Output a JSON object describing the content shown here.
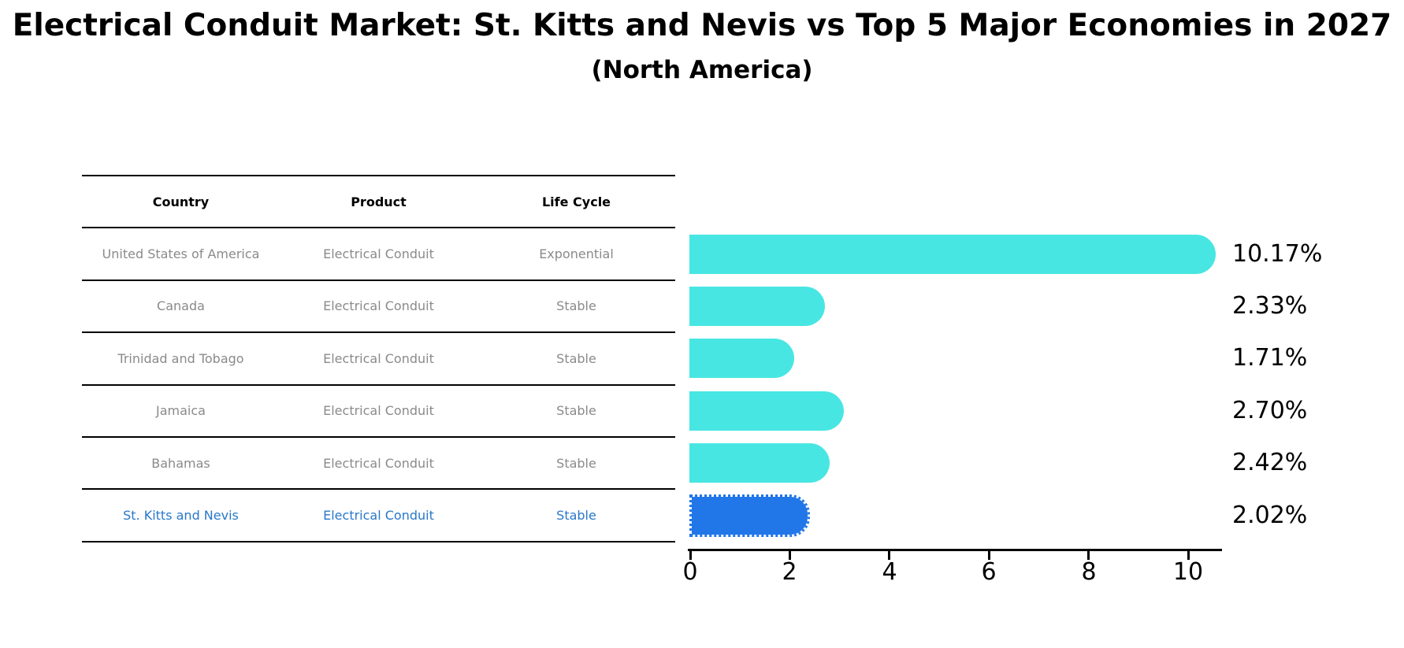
{
  "title": "Electrical Conduit Market: St. Kitts and Nevis vs Top 5 Major Economies in 2027",
  "subtitle": "(North America)",
  "table": {
    "headers": [
      "Country",
      "Product",
      "Life Cycle"
    ],
    "rows": [
      {
        "country": "United States of America",
        "product": "Electrical Conduit",
        "life_cycle": "Exponential",
        "highlight": false
      },
      {
        "country": "Canada",
        "product": "Electrical Conduit",
        "life_cycle": "Stable",
        "highlight": false
      },
      {
        "country": "Trinidad and Tobago",
        "product": "Electrical Conduit",
        "life_cycle": "Stable",
        "highlight": false
      },
      {
        "country": "Jamaica",
        "product": "Electrical Conduit",
        "life_cycle": "Stable",
        "highlight": false
      },
      {
        "country": "Bahamas",
        "product": "Electrical Conduit",
        "life_cycle": "Stable",
        "highlight": false
      },
      {
        "country": "St. Kitts and Nevis",
        "product": "Electrical Conduit",
        "life_cycle": "Stable",
        "highlight": true
      }
    ]
  },
  "chart_data": {
    "type": "bar",
    "orientation": "horizontal",
    "title": "Electrical Conduit Market: St. Kitts and Nevis vs Top 5 Major Economies in 2027 (North America)",
    "categories": [
      "United States of America",
      "Canada",
      "Trinidad and Tobago",
      "Jamaica",
      "Bahamas",
      "St. Kitts and Nevis"
    ],
    "values": [
      10.17,
      2.33,
      1.71,
      2.7,
      2.42,
      2.02
    ],
    "value_labels": [
      "10.17%",
      "2.33%",
      "1.71%",
      "2.70%",
      "2.42%",
      "2.02%"
    ],
    "x_ticks": [
      0,
      2,
      4,
      6,
      8,
      10
    ],
    "xlim": [
      0,
      10.7
    ],
    "grid": "off",
    "legend": "none",
    "bar_color": "#48e6e3",
    "highlight_color": "#2277e8",
    "highlight_index": 5,
    "highlight_edge_style": "dotted",
    "text_colors": {
      "table_gray": "#8a8a8a",
      "highlight_row_blue": "#2878c8",
      "black": "#000000"
    }
  }
}
